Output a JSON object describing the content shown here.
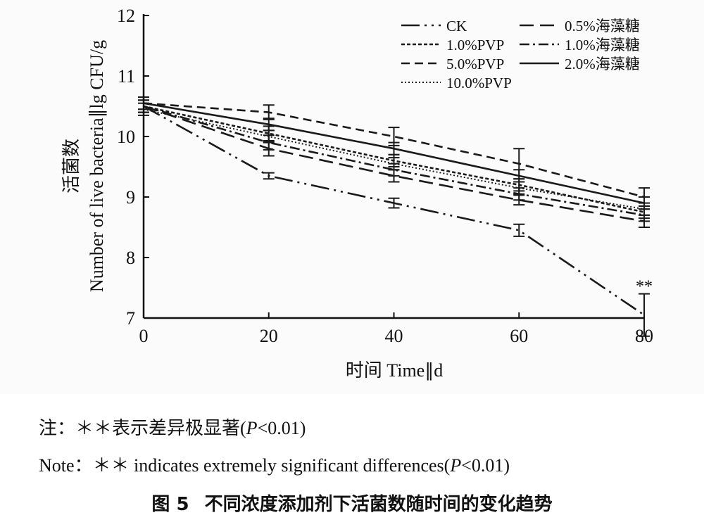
{
  "chart_data": {
    "type": "line",
    "x": [
      0,
      20,
      40,
      60,
      80
    ],
    "xlim": [
      0,
      80
    ],
    "ylim": [
      7,
      12
    ],
    "x_ticks": [
      "0",
      "20",
      "40",
      "60",
      "80"
    ],
    "y_ticks": [
      "7",
      "8",
      "9",
      "10",
      "11",
      "12"
    ],
    "xlabel": "时间 Time∥d",
    "ylabel_cn": "活菌数",
    "ylabel_en": "Number of live bacteria∥lg CFU/g",
    "series": [
      {
        "name": "CK",
        "dash": "ckdash",
        "values": [
          10.5,
          9.35,
          8.9,
          8.45,
          7.05
        ],
        "err": [
          0.1,
          0.05,
          0.08,
          0.1,
          0.35
        ]
      },
      {
        "name": "0.5%海藻糖",
        "dash": "longdash",
        "values": [
          10.5,
          9.8,
          9.35,
          8.95,
          8.6
        ],
        "err": [
          0.1,
          0.12,
          0.1,
          0.08,
          0.1
        ]
      },
      {
        "name": "1.0%PVP",
        "dash": "shortdash",
        "values": [
          10.5,
          10.05,
          9.6,
          9.2,
          8.75
        ],
        "err": [
          0.1,
          0.12,
          0.1,
          0.1,
          0.1
        ]
      },
      {
        "name": "1.0%海藻糖",
        "dash": "dashdot",
        "values": [
          10.5,
          9.9,
          9.45,
          9.05,
          8.7
        ],
        "err": [
          0.1,
          0.12,
          0.1,
          0.1,
          0.1
        ]
      },
      {
        "name": "5.0%PVP",
        "dash": "meddash",
        "values": [
          10.55,
          10.4,
          10.0,
          9.55,
          9.0
        ],
        "err": [
          0.1,
          0.12,
          0.15,
          0.25,
          0.15
        ]
      },
      {
        "name": "2.0%海藻糖",
        "dash": "solid",
        "values": [
          10.55,
          10.2,
          9.8,
          9.35,
          8.9
        ],
        "err": [
          0.1,
          0.1,
          0.1,
          0.1,
          0.1
        ]
      },
      {
        "name": "10.0%PVP",
        "dash": "dotted",
        "values": [
          10.45,
          10.0,
          9.55,
          9.15,
          8.8
        ],
        "err": [
          0.1,
          0.1,
          0.1,
          0.1,
          0.1
        ]
      }
    ],
    "annotations": [
      {
        "x": 80,
        "y": 7.55,
        "text": "**"
      }
    ]
  },
  "notes": {
    "cn_prefix": "注：＊＊表示差异极显著(",
    "cn_p": "P",
    "cn_suffix": "<0.01)",
    "en_prefix": "Note：＊＊ indicates extremely significant differences(",
    "en_p": "P",
    "en_suffix": "<0.01)"
  },
  "caption": {
    "number": "图 5",
    "text": "不同浓度添加剂下活菌数随时间的变化趋势"
  }
}
